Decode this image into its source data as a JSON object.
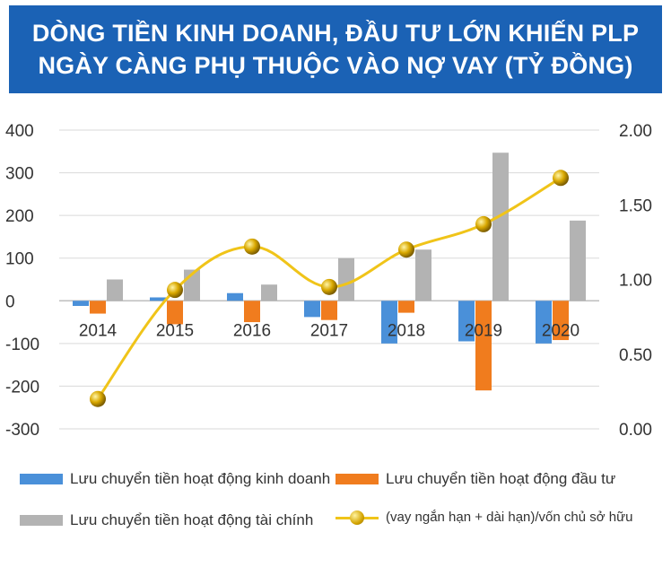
{
  "header": {
    "title_line1": "DÒNG TIỀN KINH DOANH, ĐẦU TƯ LỚN KHIẾN PLP",
    "title_line2": "NGÀY CÀNG PHỤ THUỘC VÀO NỢ VAY (TỶ ĐỒNG)"
  },
  "chart_data": {
    "type": "bar",
    "categories": [
      "2014",
      "2015",
      "2016",
      "2017",
      "2018",
      "2019",
      "2020"
    ],
    "series": [
      {
        "name": "Lưu chuyển tiền hoạt động kinh doanh",
        "values": [
          -12,
          8,
          18,
          -38,
          -100,
          -95,
          -100
        ],
        "color": "#4a90d9",
        "axis": "left"
      },
      {
        "name": "Lưu chuyển tiền hoạt động đầu tư",
        "values": [
          -30,
          -55,
          -50,
          -45,
          -28,
          -210,
          -92
        ],
        "color": "#f07c1e",
        "axis": "left"
      },
      {
        "name": "Lưu chuyển tiền hoạt động tài chính",
        "values": [
          50,
          73,
          38,
          100,
          120,
          347,
          188
        ],
        "color": "#b3b3b3",
        "axis": "left"
      },
      {
        "name": "(vay ngắn hạn + dài hạn)/vốn chủ sở hữu",
        "type": "line",
        "values": [
          0.2,
          0.93,
          1.22,
          0.95,
          1.2,
          1.37,
          1.68
        ],
        "color": "#f0c419",
        "axis": "right"
      }
    ],
    "left_axis": {
      "ylim": [
        -300,
        400
      ],
      "ticks": [
        "400",
        "300",
        "200",
        "100",
        "0",
        "-100",
        "-200",
        "-300"
      ],
      "tick_values": [
        400,
        300,
        200,
        100,
        0,
        -100,
        -200,
        -300
      ]
    },
    "right_axis": {
      "ylim": [
        0,
        2
      ],
      "ticks": [
        "2.00",
        "1.50",
        "1.00",
        "0.50",
        "0.00"
      ],
      "tick_values": [
        2,
        1.5,
        1,
        0.5,
        0
      ]
    },
    "grid": true,
    "legend_position": "bottom"
  }
}
